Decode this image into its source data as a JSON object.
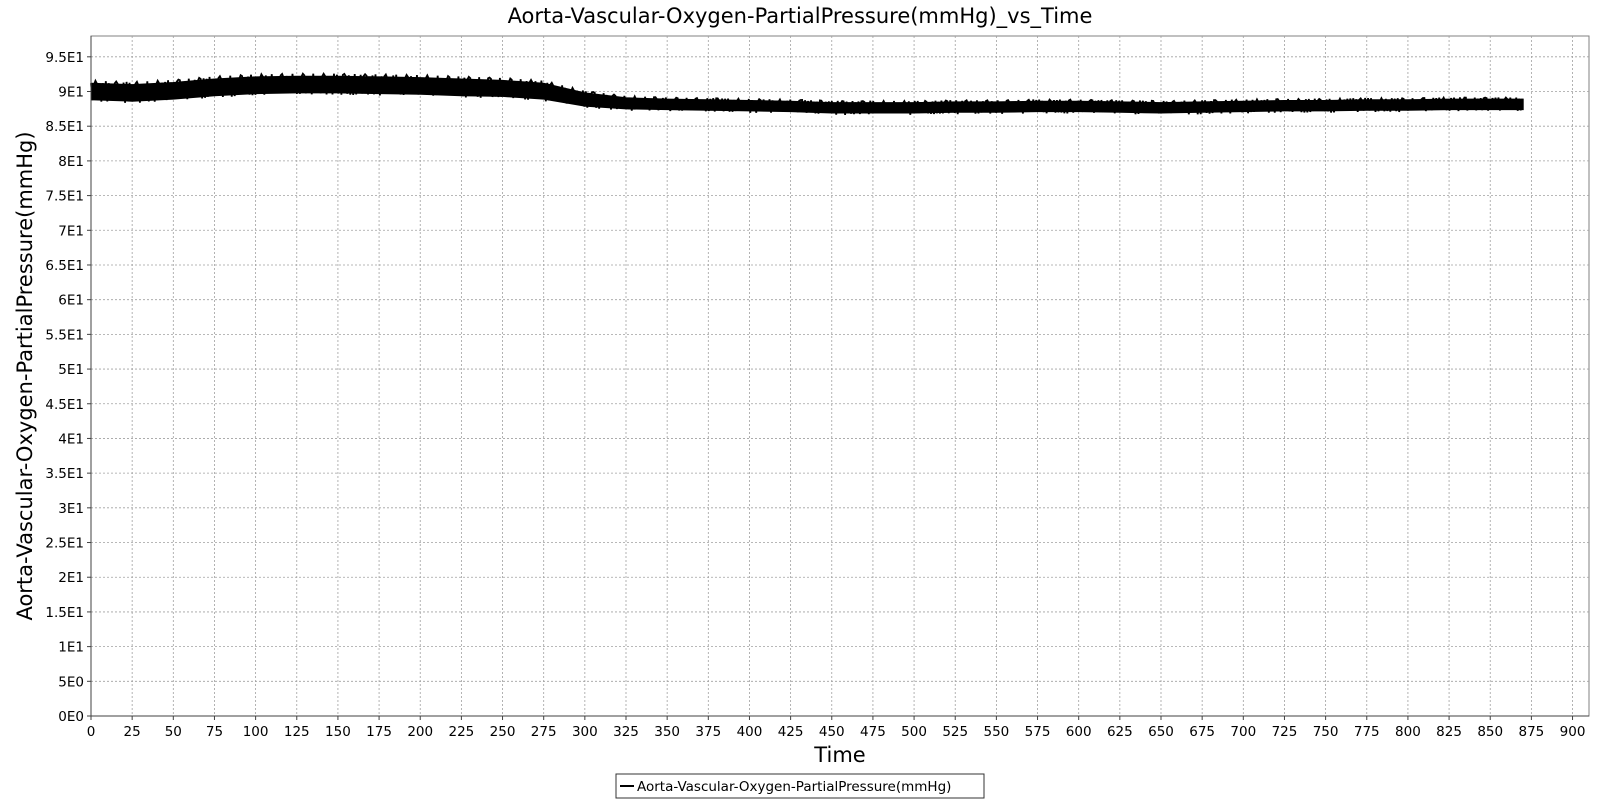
{
  "chart_data": {
    "type": "line",
    "title": "Aorta-Vascular-Oxygen-PartialPressure(mmHg)_vs_Time",
    "xlabel": "Time",
    "ylabel": "Aorta-Vascular-Oxygen-PartialPressure(mmHg)",
    "xlim": [
      0,
      910
    ],
    "ylim": [
      0,
      98
    ],
    "x_ticks": [
      0,
      25,
      50,
      75,
      100,
      125,
      150,
      175,
      200,
      225,
      250,
      275,
      300,
      325,
      350,
      375,
      400,
      425,
      450,
      475,
      500,
      525,
      550,
      575,
      600,
      625,
      650,
      675,
      700,
      725,
      750,
      775,
      800,
      825,
      850,
      875,
      900
    ],
    "x_tick_labels": [
      "0",
      "25",
      "50",
      "75",
      "100",
      "125",
      "150",
      "175",
      "200",
      "225",
      "250",
      "275",
      "300",
      "325",
      "350",
      "375",
      "400",
      "425",
      "450",
      "475",
      "500",
      "525",
      "550",
      "575",
      "600",
      "625",
      "650",
      "675",
      "700",
      "725",
      "750",
      "775",
      "800",
      "825",
      "850",
      "875",
      "900"
    ],
    "y_ticks": [
      0,
      5,
      10,
      15,
      20,
      25,
      30,
      35,
      40,
      45,
      50,
      55,
      60,
      65,
      70,
      75,
      80,
      85,
      90,
      95
    ],
    "y_tick_labels": [
      "0E0",
      "5E0",
      "1E1",
      "1.5E1",
      "2E1",
      "2.5E1",
      "3E1",
      "3.5E1",
      "4E1",
      "4.5E1",
      "5E1",
      "5.5E1",
      "6E1",
      "6.5E1",
      "7E1",
      "7.5E1",
      "8E1",
      "8.5E1",
      "9E1",
      "9.5E1"
    ],
    "grid": true,
    "legend": "bottom-center",
    "series": [
      {
        "name": "Aorta-Vascular-Oxygen-PartialPressure(mmHg)",
        "color": "#000000",
        "band_width": 1.8,
        "x": [
          0,
          25,
          50,
          75,
          100,
          125,
          150,
          175,
          200,
          225,
          250,
          275,
          300,
          325,
          350,
          375,
          400,
          425,
          450,
          475,
          500,
          525,
          550,
          575,
          600,
          625,
          650,
          675,
          700,
          725,
          750,
          775,
          800,
          825,
          850,
          870
        ],
        "y_min": [
          88.8,
          88.6,
          88.9,
          89.4,
          89.7,
          89.8,
          89.8,
          89.7,
          89.6,
          89.4,
          89.3,
          88.9,
          87.9,
          87.5,
          87.4,
          87.3,
          87.2,
          87.1,
          86.9,
          86.9,
          86.9,
          87.0,
          87.0,
          87.1,
          87.1,
          87.0,
          86.9,
          87.0,
          87.1,
          87.2,
          87.2,
          87.3,
          87.3,
          87.4,
          87.4,
          87.4
        ],
        "y_max": [
          91.2,
          91.0,
          91.3,
          91.8,
          92.1,
          92.2,
          92.2,
          92.1,
          92.0,
          91.8,
          91.6,
          91.2,
          89.8,
          89.1,
          88.9,
          88.8,
          88.7,
          88.6,
          88.4,
          88.4,
          88.4,
          88.5,
          88.5,
          88.6,
          88.6,
          88.5,
          88.4,
          88.5,
          88.6,
          88.7,
          88.7,
          88.8,
          88.8,
          88.9,
          88.9,
          88.9
        ]
      }
    ]
  }
}
